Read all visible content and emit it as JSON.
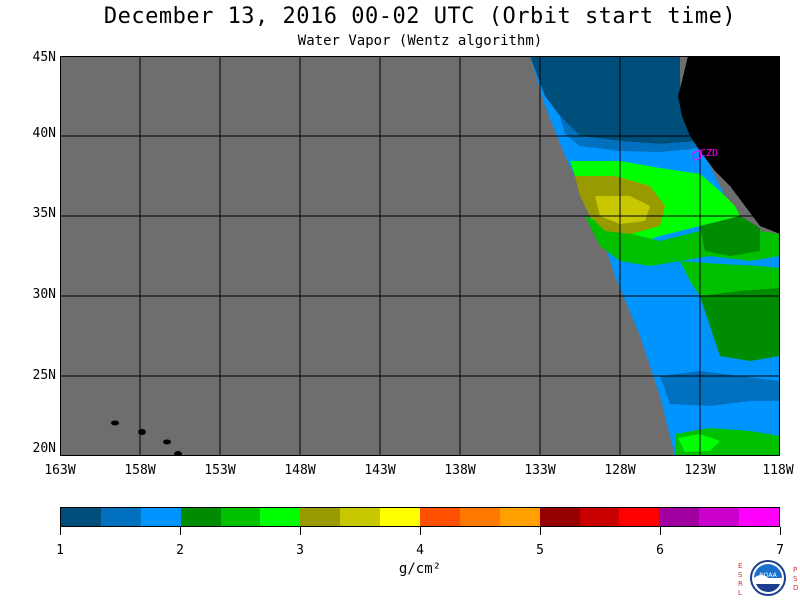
{
  "title": "December 13, 2016  00-02 UTC  (Orbit start time)",
  "subtitle": "Water Vapor (Wentz algorithm)",
  "lat_labels": [
    "45N",
    "40N",
    "35N",
    "30N",
    "25N",
    "20N"
  ],
  "lon_labels": [
    "163W",
    "158W",
    "153W",
    "148W",
    "143W",
    "138W",
    "133W",
    "128W",
    "123W",
    "118W"
  ],
  "station_label": "CZD",
  "colorbar": {
    "ticks": [
      "1",
      "2",
      "3",
      "4",
      "5",
      "6",
      "7"
    ],
    "units_label": "g/cm²",
    "colors": [
      "#004f7a",
      "#0070bf",
      "#0094ff",
      "#008c00",
      "#00c000",
      "#00ff00",
      "#999900",
      "#c8c800",
      "#ffff00",
      "#ff4f00",
      "#ff7800",
      "#ffa000",
      "#960000",
      "#c80000",
      "#ff0000",
      "#a000a0",
      "#cc00cc",
      "#ff00ff"
    ]
  },
  "logo": {
    "name": "NOAA",
    "left_letters": [
      "E",
      "S",
      "R",
      "L"
    ],
    "right_letters": [
      "P",
      "S",
      "D"
    ]
  }
}
